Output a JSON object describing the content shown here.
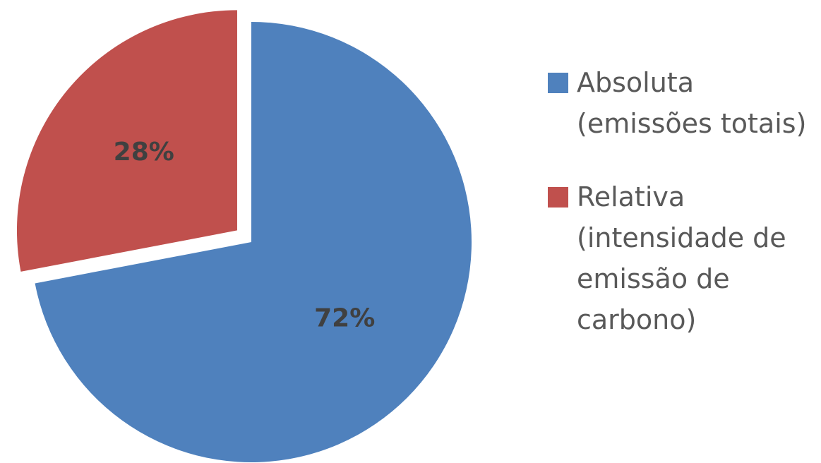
{
  "chart_data": {
    "type": "pie",
    "categories": [
      "Absoluta (emissões totais)",
      "Relativa (intensidade de emissão de carbono)"
    ],
    "values": [
      72,
      28
    ],
    "data_labels": [
      "72%",
      "28%"
    ],
    "colors": [
      "#4F81BD",
      "#C0504D"
    ],
    "exploded": [
      false,
      true
    ],
    "legend_position": "right",
    "title": ""
  },
  "legend": {
    "items": [
      {
        "label": "Absoluta (emissões totais)",
        "color": "#4F81BD"
      },
      {
        "label": "Relativa (intensidade de emissão de carbono)",
        "color": "#C0504D"
      }
    ]
  }
}
